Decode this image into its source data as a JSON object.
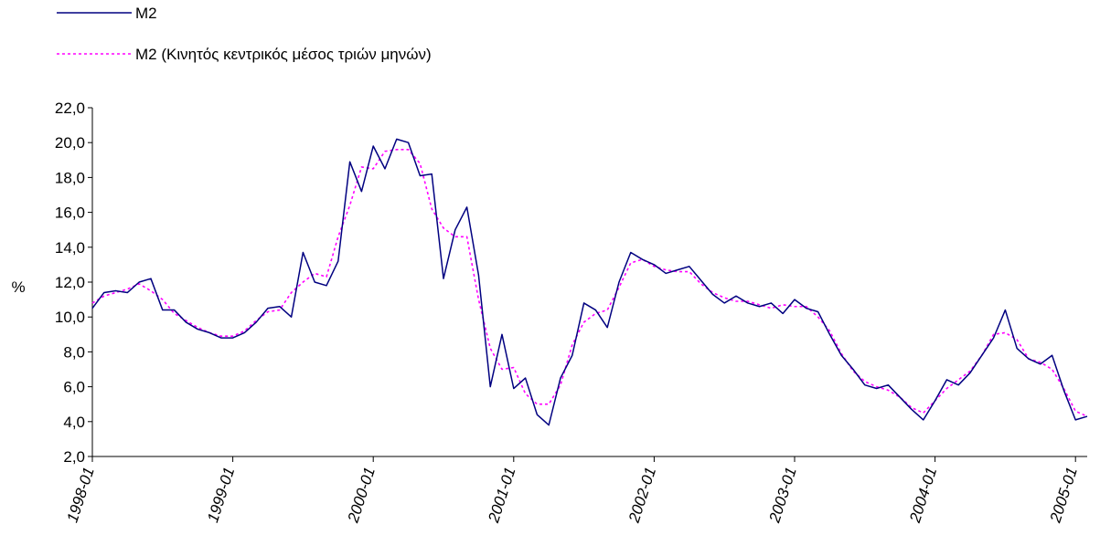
{
  "chart_data": {
    "type": "line",
    "title": "",
    "xlabel": "",
    "ylabel": "%",
    "ylim": [
      2.0,
      22.0
    ],
    "y_ticks": [
      "2,0",
      "4,0",
      "6,0",
      "8,0",
      "10,0",
      "12,0",
      "14,0",
      "16,0",
      "18,0",
      "20,0",
      "22,0"
    ],
    "x_tick_labels": [
      "1998-01",
      "1999-01",
      "2000-01",
      "2001-01",
      "2002-01",
      "2003-01",
      "2004-01",
      "2005-01"
    ],
    "grid": false,
    "legend_position": "top-left",
    "series": [
      {
        "name": "M2",
        "color": "#000080",
        "style": "solid",
        "values": [
          10.5,
          11.4,
          11.5,
          11.4,
          12.0,
          12.2,
          10.4,
          10.4,
          9.7,
          9.3,
          9.1,
          8.8,
          8.8,
          9.1,
          9.7,
          10.5,
          10.6,
          10.0,
          13.7,
          12.0,
          11.8,
          13.2,
          18.9,
          17.2,
          19.8,
          18.5,
          20.2,
          20.0,
          18.1,
          18.2,
          12.2,
          15.0,
          16.3,
          12.4,
          6.0,
          9.0,
          5.9,
          6.5,
          4.4,
          3.8,
          6.5,
          7.8,
          10.8,
          10.4,
          9.4,
          12.0,
          13.7,
          13.3,
          13.0,
          12.5,
          12.7,
          12.9,
          12.1,
          11.3,
          10.8,
          11.2,
          10.8,
          10.6,
          10.8,
          10.2,
          11.0,
          10.5,
          10.3,
          9.0,
          7.8,
          7.0,
          6.1,
          5.9,
          6.1,
          5.4,
          4.7,
          4.1,
          5.2,
          6.4,
          6.1,
          6.8,
          7.8,
          8.8,
          10.4,
          8.2,
          7.6,
          7.3,
          7.8,
          5.8,
          4.1,
          4.3
        ]
      },
      {
        "name": "M2 (Κινητός κεντρικός μέσος τριών μηνών)",
        "color": "#ff00ff",
        "style": "dotted",
        "values": [
          10.8,
          11.2,
          11.4,
          11.6,
          11.9,
          11.5,
          11.0,
          10.2,
          9.8,
          9.4,
          9.1,
          8.9,
          8.9,
          9.2,
          9.8,
          10.3,
          10.4,
          11.4,
          12.0,
          12.5,
          12.3,
          14.6,
          16.4,
          18.6,
          18.5,
          19.5,
          19.6,
          19.6,
          18.8,
          16.2,
          15.1,
          14.6,
          14.6,
          11.0,
          8.2,
          7.0,
          7.1,
          5.6,
          5.0,
          5.0,
          6.1,
          8.4,
          9.7,
          10.2,
          10.4,
          11.7,
          13.1,
          13.3,
          12.9,
          12.7,
          12.6,
          12.6,
          11.9,
          11.4,
          11.1,
          10.9,
          10.9,
          10.7,
          10.5,
          10.7,
          10.6,
          10.6,
          10.0,
          9.2,
          7.9,
          6.9,
          6.3,
          6.0,
          5.8,
          5.4,
          4.8,
          4.5,
          5.2,
          5.9,
          6.4,
          6.9,
          7.8,
          9.0,
          9.1,
          8.7,
          7.6,
          7.4,
          7.0,
          5.9,
          4.6,
          4.3
        ]
      }
    ]
  }
}
